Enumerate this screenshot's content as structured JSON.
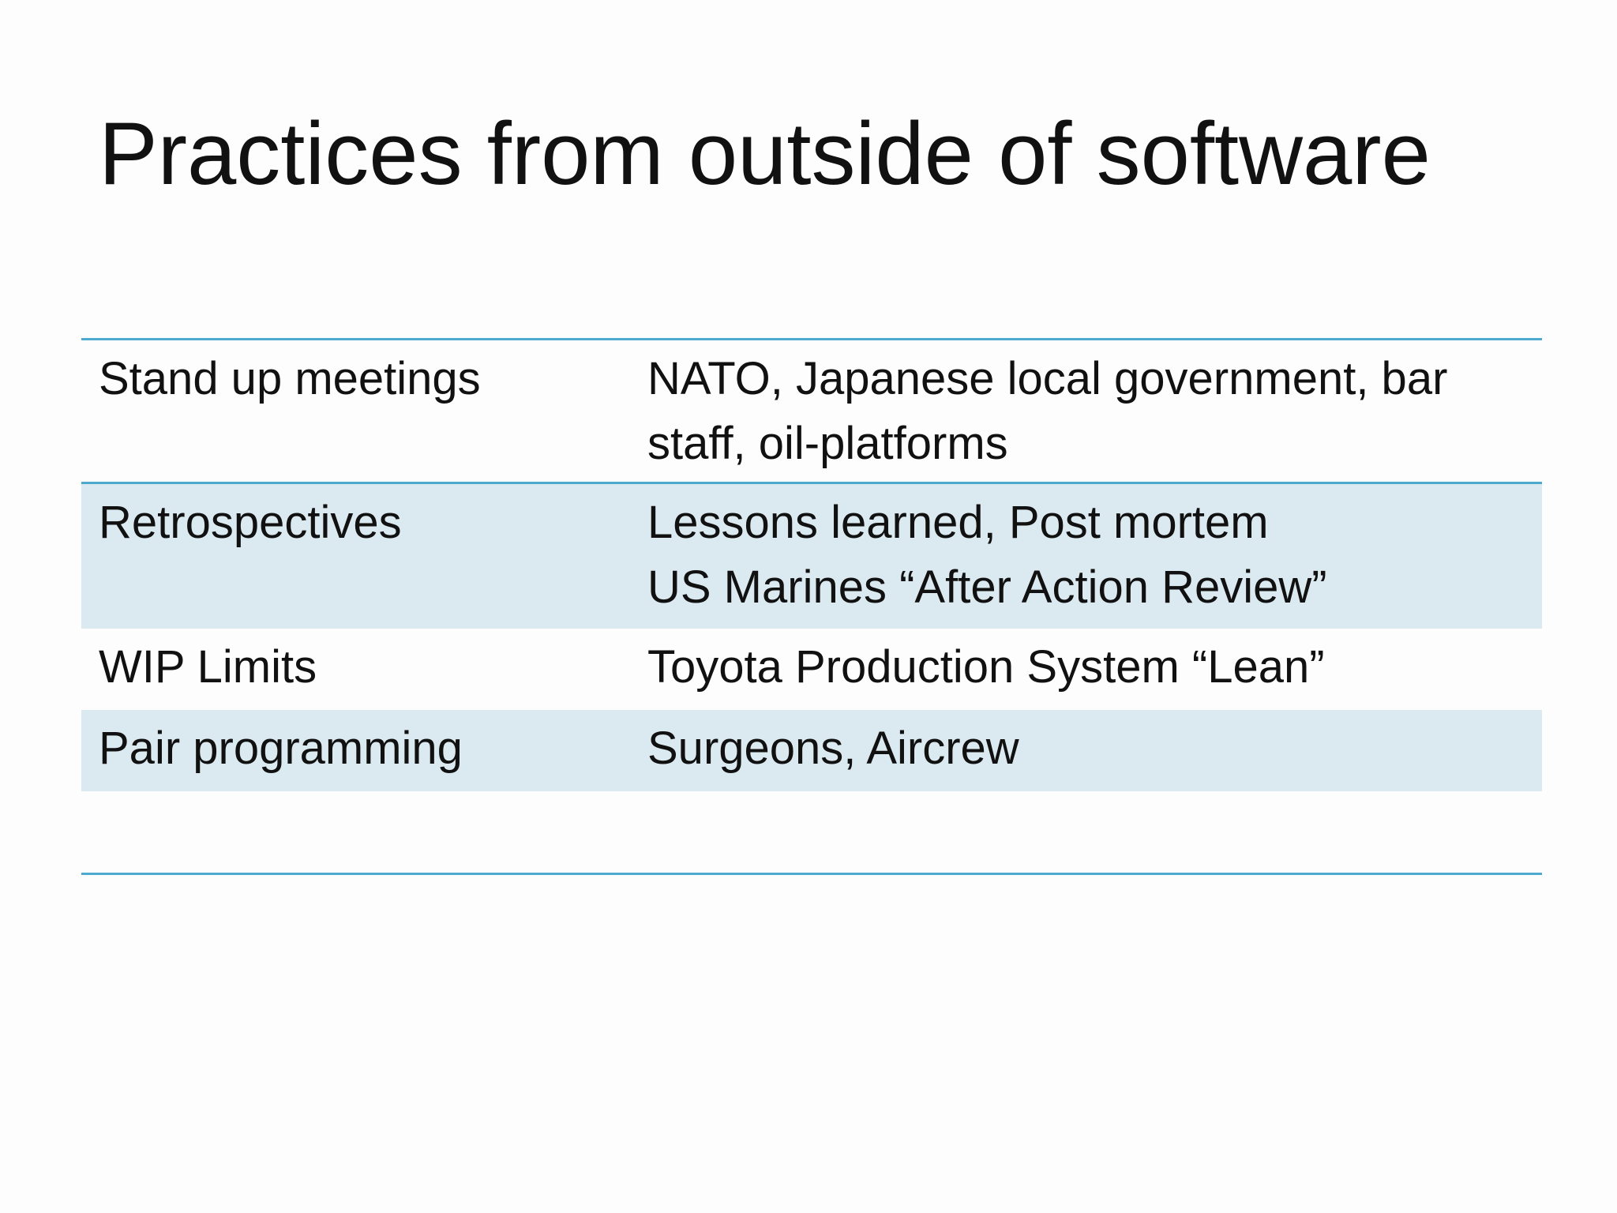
{
  "slide": {
    "title": "Practices from outside of software"
  },
  "table": {
    "rows": [
      {
        "practice": "Stand up meetings",
        "origins": [
          "NATO, Japanese local government, bar",
          "staff, oil-platforms"
        ]
      },
      {
        "practice": "Retrospectives",
        "origins": [
          "Lessons learned, Post mortem",
          "US Marines “After Action Review”"
        ]
      },
      {
        "practice": "WIP Limits",
        "origins": [
          "Toyota Production System “Lean”"
        ]
      },
      {
        "practice": "Pair programming",
        "origins": [
          "Surgeons, Aircrew"
        ]
      }
    ]
  },
  "colors": {
    "rule": "#4ea9cf",
    "shaded_row": "#dbeaf0",
    "background": "#fdfdfd",
    "text": "#111111"
  }
}
